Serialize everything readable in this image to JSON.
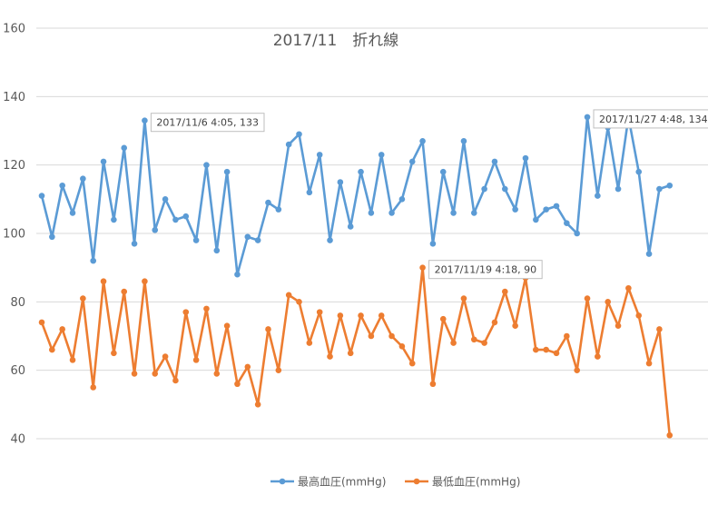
{
  "chart_data": {
    "type": "line",
    "title": "2017/11　折れ線",
    "xlabel": "",
    "ylabel": "",
    "ylim": [
      40,
      160
    ],
    "yticks": [
      40,
      60,
      80,
      100,
      120,
      140,
      160
    ],
    "grid": true,
    "legend_position": "bottom",
    "series": [
      {
        "name": "最高血圧(mmHg)",
        "color": "#5B9BD5",
        "values": [
          111,
          99,
          114,
          106,
          116,
          92,
          121,
          104,
          125,
          97,
          133,
          101,
          110,
          104,
          105,
          98,
          120,
          95,
          118,
          88,
          99,
          98,
          109,
          107,
          126,
          129,
          112,
          123,
          98,
          115,
          102,
          118,
          106,
          123,
          106,
          110,
          121,
          127,
          97,
          118,
          106,
          127,
          106,
          113,
          121,
          113,
          107,
          122,
          104,
          107,
          108,
          103,
          100,
          134,
          111,
          131,
          113,
          134,
          118,
          94,
          113,
          114
        ]
      },
      {
        "name": "最低血圧(mmHg)",
        "color": "#ED7D31",
        "values": [
          74,
          66,
          72,
          63,
          81,
          55,
          86,
          65,
          83,
          59,
          86,
          59,
          64,
          57,
          77,
          63,
          78,
          59,
          73,
          56,
          61,
          50,
          72,
          60,
          82,
          80,
          68,
          77,
          64,
          76,
          65,
          76,
          70,
          76,
          70,
          67,
          62,
          90,
          56,
          75,
          68,
          81,
          69,
          68,
          74,
          83,
          73,
          87,
          66,
          66,
          65,
          70,
          60,
          81,
          64,
          80,
          73,
          84,
          76,
          62,
          72,
          41
        ]
      }
    ],
    "annotations": [
      {
        "series": 0,
        "index": 10,
        "text": "2017/11/6 4:05, 133"
      },
      {
        "series": 0,
        "index": 53,
        "text": "2017/11/27 4:48, 134"
      },
      {
        "series": 1,
        "index": 37,
        "text": "2017/11/19 4:18, 90"
      }
    ]
  }
}
